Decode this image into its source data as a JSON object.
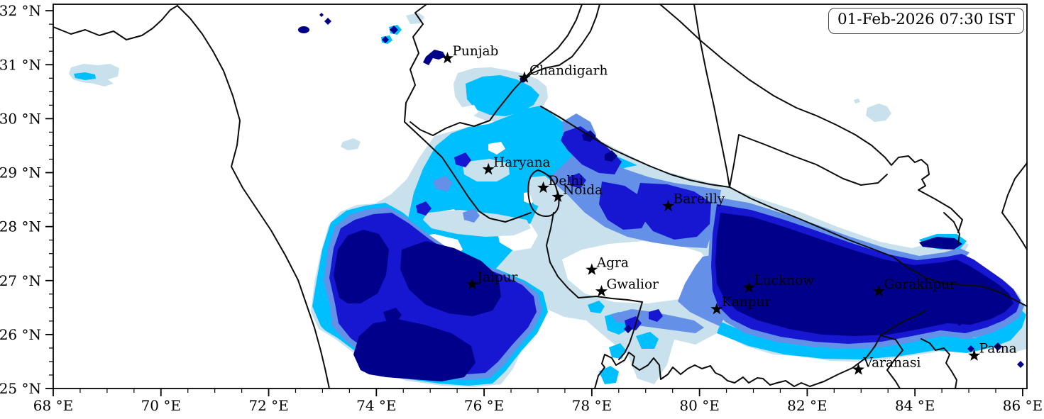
{
  "header": {
    "timestamp_label": "01-Feb-2026 07:30 IST"
  },
  "map": {
    "extent": {
      "lon_min": 68.0,
      "lon_max": 86.08,
      "lat_min": 25.0,
      "lat_max": 32.12
    },
    "x_axis": {
      "tick_lons": [
        68,
        70,
        72,
        74,
        76,
        78,
        80,
        82,
        84,
        86
      ],
      "tick_labels": [
        "68 °E",
        "70 °E",
        "72 °E",
        "74 °E",
        "76 °E",
        "78 °E",
        "80 °E",
        "82 °E",
        "84 °E",
        "86 °E"
      ],
      "minor_step_deg": 0.5
    },
    "y_axis": {
      "tick_lats": [
        32,
        31,
        30,
        29,
        28,
        27,
        26,
        25
      ],
      "tick_labels": [
        "32 °N",
        "31 °N",
        "30 °N",
        "29 °N",
        "28 °N",
        "27 °N",
        "26 °N",
        "25 °N"
      ],
      "minor_step_deg": 0.25
    },
    "cities": [
      {
        "name": "Punjab",
        "lon": 75.32,
        "lat": 31.12
      },
      {
        "name": "Chandigarh",
        "lon": 76.75,
        "lat": 30.76
      },
      {
        "name": "Haryana",
        "lon": 76.08,
        "lat": 29.06
      },
      {
        "name": "Delhi",
        "lon": 77.1,
        "lat": 28.72
      },
      {
        "name": "Noida",
        "lon": 77.37,
        "lat": 28.55
      },
      {
        "name": "Bareilly",
        "lon": 79.42,
        "lat": 28.38
      },
      {
        "name": "Agra",
        "lon": 78.0,
        "lat": 27.2
      },
      {
        "name": "Gwalior",
        "lon": 78.18,
        "lat": 26.8
      },
      {
        "name": "Jaipur",
        "lon": 75.78,
        "lat": 26.93
      },
      {
        "name": "Lucknow",
        "lon": 80.92,
        "lat": 26.87
      },
      {
        "name": "Kanpur",
        "lon": 80.32,
        "lat": 26.47
      },
      {
        "name": "Gorakhpur",
        "lon": 83.33,
        "lat": 26.8
      },
      {
        "name": "Varanasi",
        "lon": 82.95,
        "lat": 25.35
      },
      {
        "name": "Patna",
        "lon": 85.1,
        "lat": 25.61
      }
    ],
    "shading_scale": {
      "description": "shading intensity levels, light to dark",
      "colors": [
        "#c9e1ec",
        "#00bfff",
        "#6490e8",
        "#1717d1",
        "#00008b"
      ]
    },
    "marker_color": "#000000"
  }
}
